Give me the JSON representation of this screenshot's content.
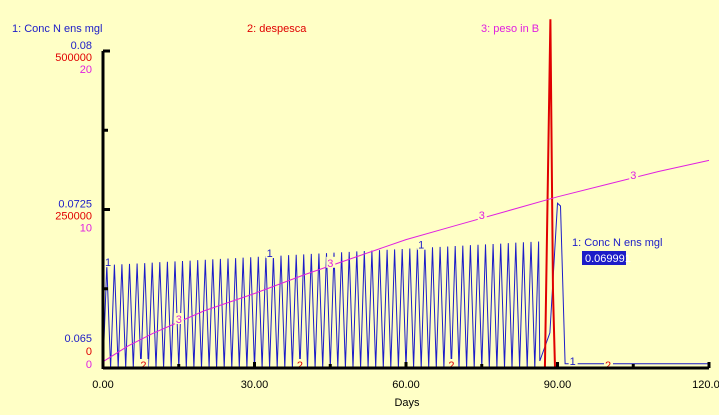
{
  "chart_data": {
    "type": "line",
    "xlabel": "Days",
    "xlim": [
      0,
      120
    ],
    "x_ticks": [
      "0.00",
      "30.00",
      "60.00",
      "90.00",
      "120.00"
    ],
    "left_axes": [
      {
        "ticks": [
          "0.08",
          "0.0725",
          "0.065"
        ],
        "range": [
          0.0575,
          0.08
        ]
      },
      {
        "ticks": [
          "500000",
          "250000",
          "0"
        ],
        "range": [
          0,
          500000
        ]
      },
      {
        "ticks": [
          "20",
          "10",
          "0"
        ],
        "range": [
          0,
          20
        ]
      }
    ],
    "series": [
      {
        "name": "1: Conc N ens mgl",
        "marker": "1",
        "axis": 0,
        "oscillation": {
          "min": 0.0575,
          "peak_start": 0.0648,
          "peak_end": 0.0665,
          "period_days": 1.5,
          "until_day": 86.5
        },
        "points": [
          [
            86.5,
            0.058
          ],
          [
            88.5,
            0.06
          ],
          [
            90.0,
            0.0692
          ],
          [
            90.6,
            0.069
          ],
          [
            91.5,
            0.0578
          ],
          [
            120,
            0.0578
          ]
        ]
      },
      {
        "name": "2: despesca",
        "marker": "2",
        "axis": 1,
        "points": [
          [
            0,
            0
          ],
          [
            87.5,
            0
          ],
          [
            88.6,
            550000
          ],
          [
            89.1,
            120000
          ],
          [
            89.5,
            0
          ],
          [
            120,
            0
          ]
        ]
      },
      {
        "name": "3: peso in B",
        "marker": "3",
        "axis": 2,
        "points": [
          [
            0,
            0.4
          ],
          [
            5,
            1.4
          ],
          [
            10,
            2.2
          ],
          [
            15,
            2.9
          ],
          [
            20,
            3.6
          ],
          [
            30,
            4.7
          ],
          [
            40,
            5.9
          ],
          [
            50,
            7.0
          ],
          [
            60,
            8.1
          ],
          [
            70,
            9.0
          ],
          [
            80,
            9.9
          ],
          [
            90,
            10.8
          ],
          [
            100,
            11.6
          ],
          [
            110,
            12.4
          ],
          [
            120,
            13.1
          ]
        ]
      }
    ],
    "readout": {
      "label": "1: Conc N ens mgl",
      "value": "0.069991"
    },
    "colors": {
      "background": "#ffffc6",
      "series1": "#1c1cc8",
      "series2": "#e00000",
      "series3": "#e020e0"
    }
  }
}
